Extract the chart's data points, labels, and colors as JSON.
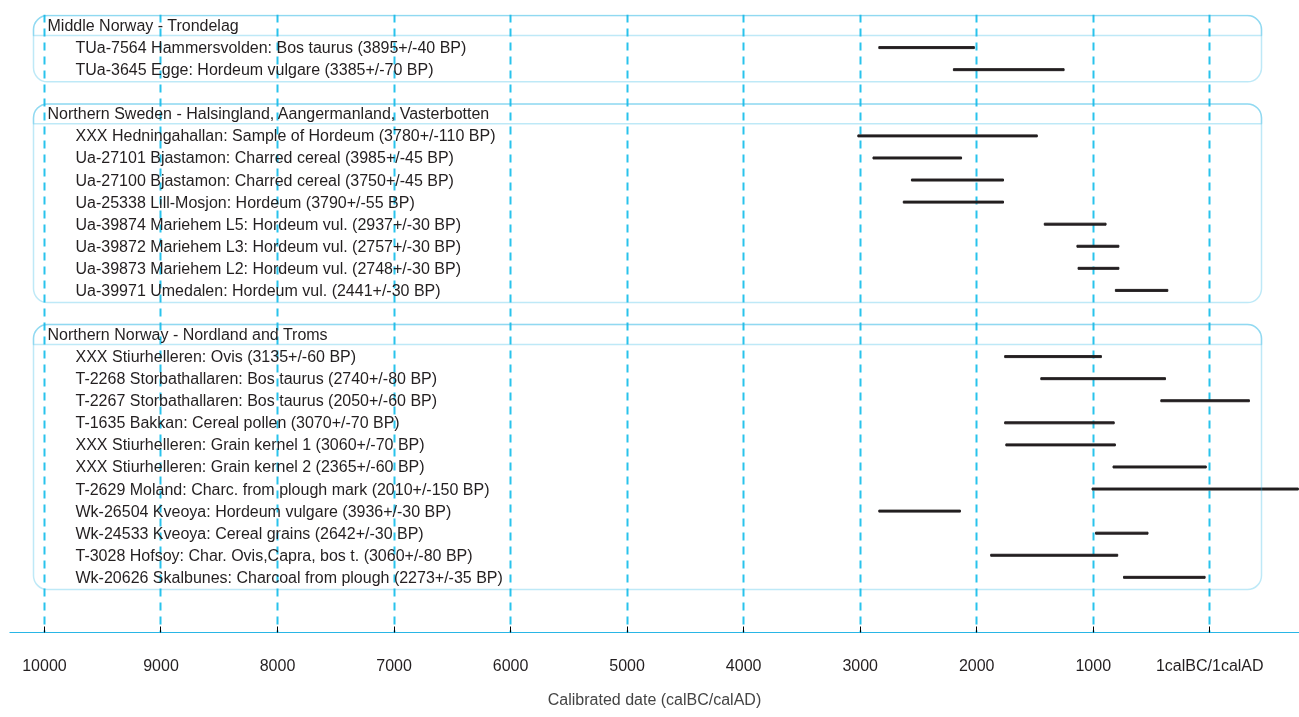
{
  "chart_data": {
    "type": "bar",
    "orientation": "horizontal",
    "xlabel": "Calibrated date (calBC/calAD)",
    "categories": [
      "Middle Norway - Trondelag",
      "TUa-7564 Hammersvolden: Bos taurus (3895+/-40 BP)",
      "TUa-3645 Egge: Hordeum vulgare (3385+/-70 BP)",
      null,
      "Northern Sweden - Halsingland, Aangermanland, Vasterbotten",
      "XXX Hedningahallan: Sample of Hordeum (3780+/-110 BP)",
      "Ua-27101 Bjastamon: Charred cereal (3985+/-45 BP)",
      "Ua-27100 Bjastamon: Charred cereal (3750+/-45 BP)",
      "Ua-25338 Lill-Mosjon: Hordeum (3790+/-55 BP)",
      "Ua-39874 Mariehem L5: Hordeum vul. (2937+/-30 BP)",
      "Ua-39872 Mariehem L3: Hordeum vul. (2757+/-30 BP)",
      "Ua-39873 Mariehem L2: Hordeum vul. (2748+/-30 BP)",
      "Ua-39971 Umedalen: Hordeum vul. (2441+/-30 BP)",
      null,
      "Northern Norway - Nordland and Troms",
      "XXX Stiurhelleren: Ovis (3135+/-60 BP)",
      "T-2268 Storbathallaren: Bos taurus (2740+/-80 BP)",
      "T-2267 Storbathallaren: Bos taurus (2050+/-60 BP)",
      "T-1635 Bakkan: Cereal pollen (3070+/-70 BP)",
      "XXX Stiurhelleren: Grain kernel 1 (3060+/-70 BP)",
      "XXX Stiurhelleren: Grain kernel 2 (2365+/-60 BP)",
      "T-2629 Moland: Charc. from plough mark (2010+/-150 BP)",
      "Wk-26504 Kveoya: Hordeum vulgare (3936+/-30 BP)",
      "Wk-24533 Kveoya: Cereal grains (2642+/-30 BP)",
      "T-3028 Hofsoy: Char. Ovis,Capra, bos t. (3060+/-80 BP)",
      "Wk-20626 Skalbunes: Charcoal from plough (2273+/-35 BP)"
    ],
    "base": [
      null,
      2020,
      1250,
      null,
      null,
      1480,
      2130,
      1770,
      1770,
      890,
      780,
      780,
      360,
      null,
      null,
      930,
      380,
      -340,
      820,
      810,
      30,
      -760,
      2140,
      530,
      790,
      40
    ],
    "values": [
      null,
      820,
      950,
      null,
      null,
      1540,
      760,
      790,
      860,
      530,
      360,
      350,
      450,
      null,
      null,
      830,
      1070,
      760,
      940,
      940,
      800,
      1770,
      700,
      450,
      1090,
      700
    ],
    "color": "#231f20",
    "xlim": [
      10300,
      -770
    ],
    "xticks": [
      10000,
      9000,
      8000,
      7000,
      6000,
      5000,
      4000,
      3000,
      2000,
      1000,
      {
        "value": 0,
        "label": "1calBC/1calAD"
      }
    ],
    "grid": "x"
  }
}
